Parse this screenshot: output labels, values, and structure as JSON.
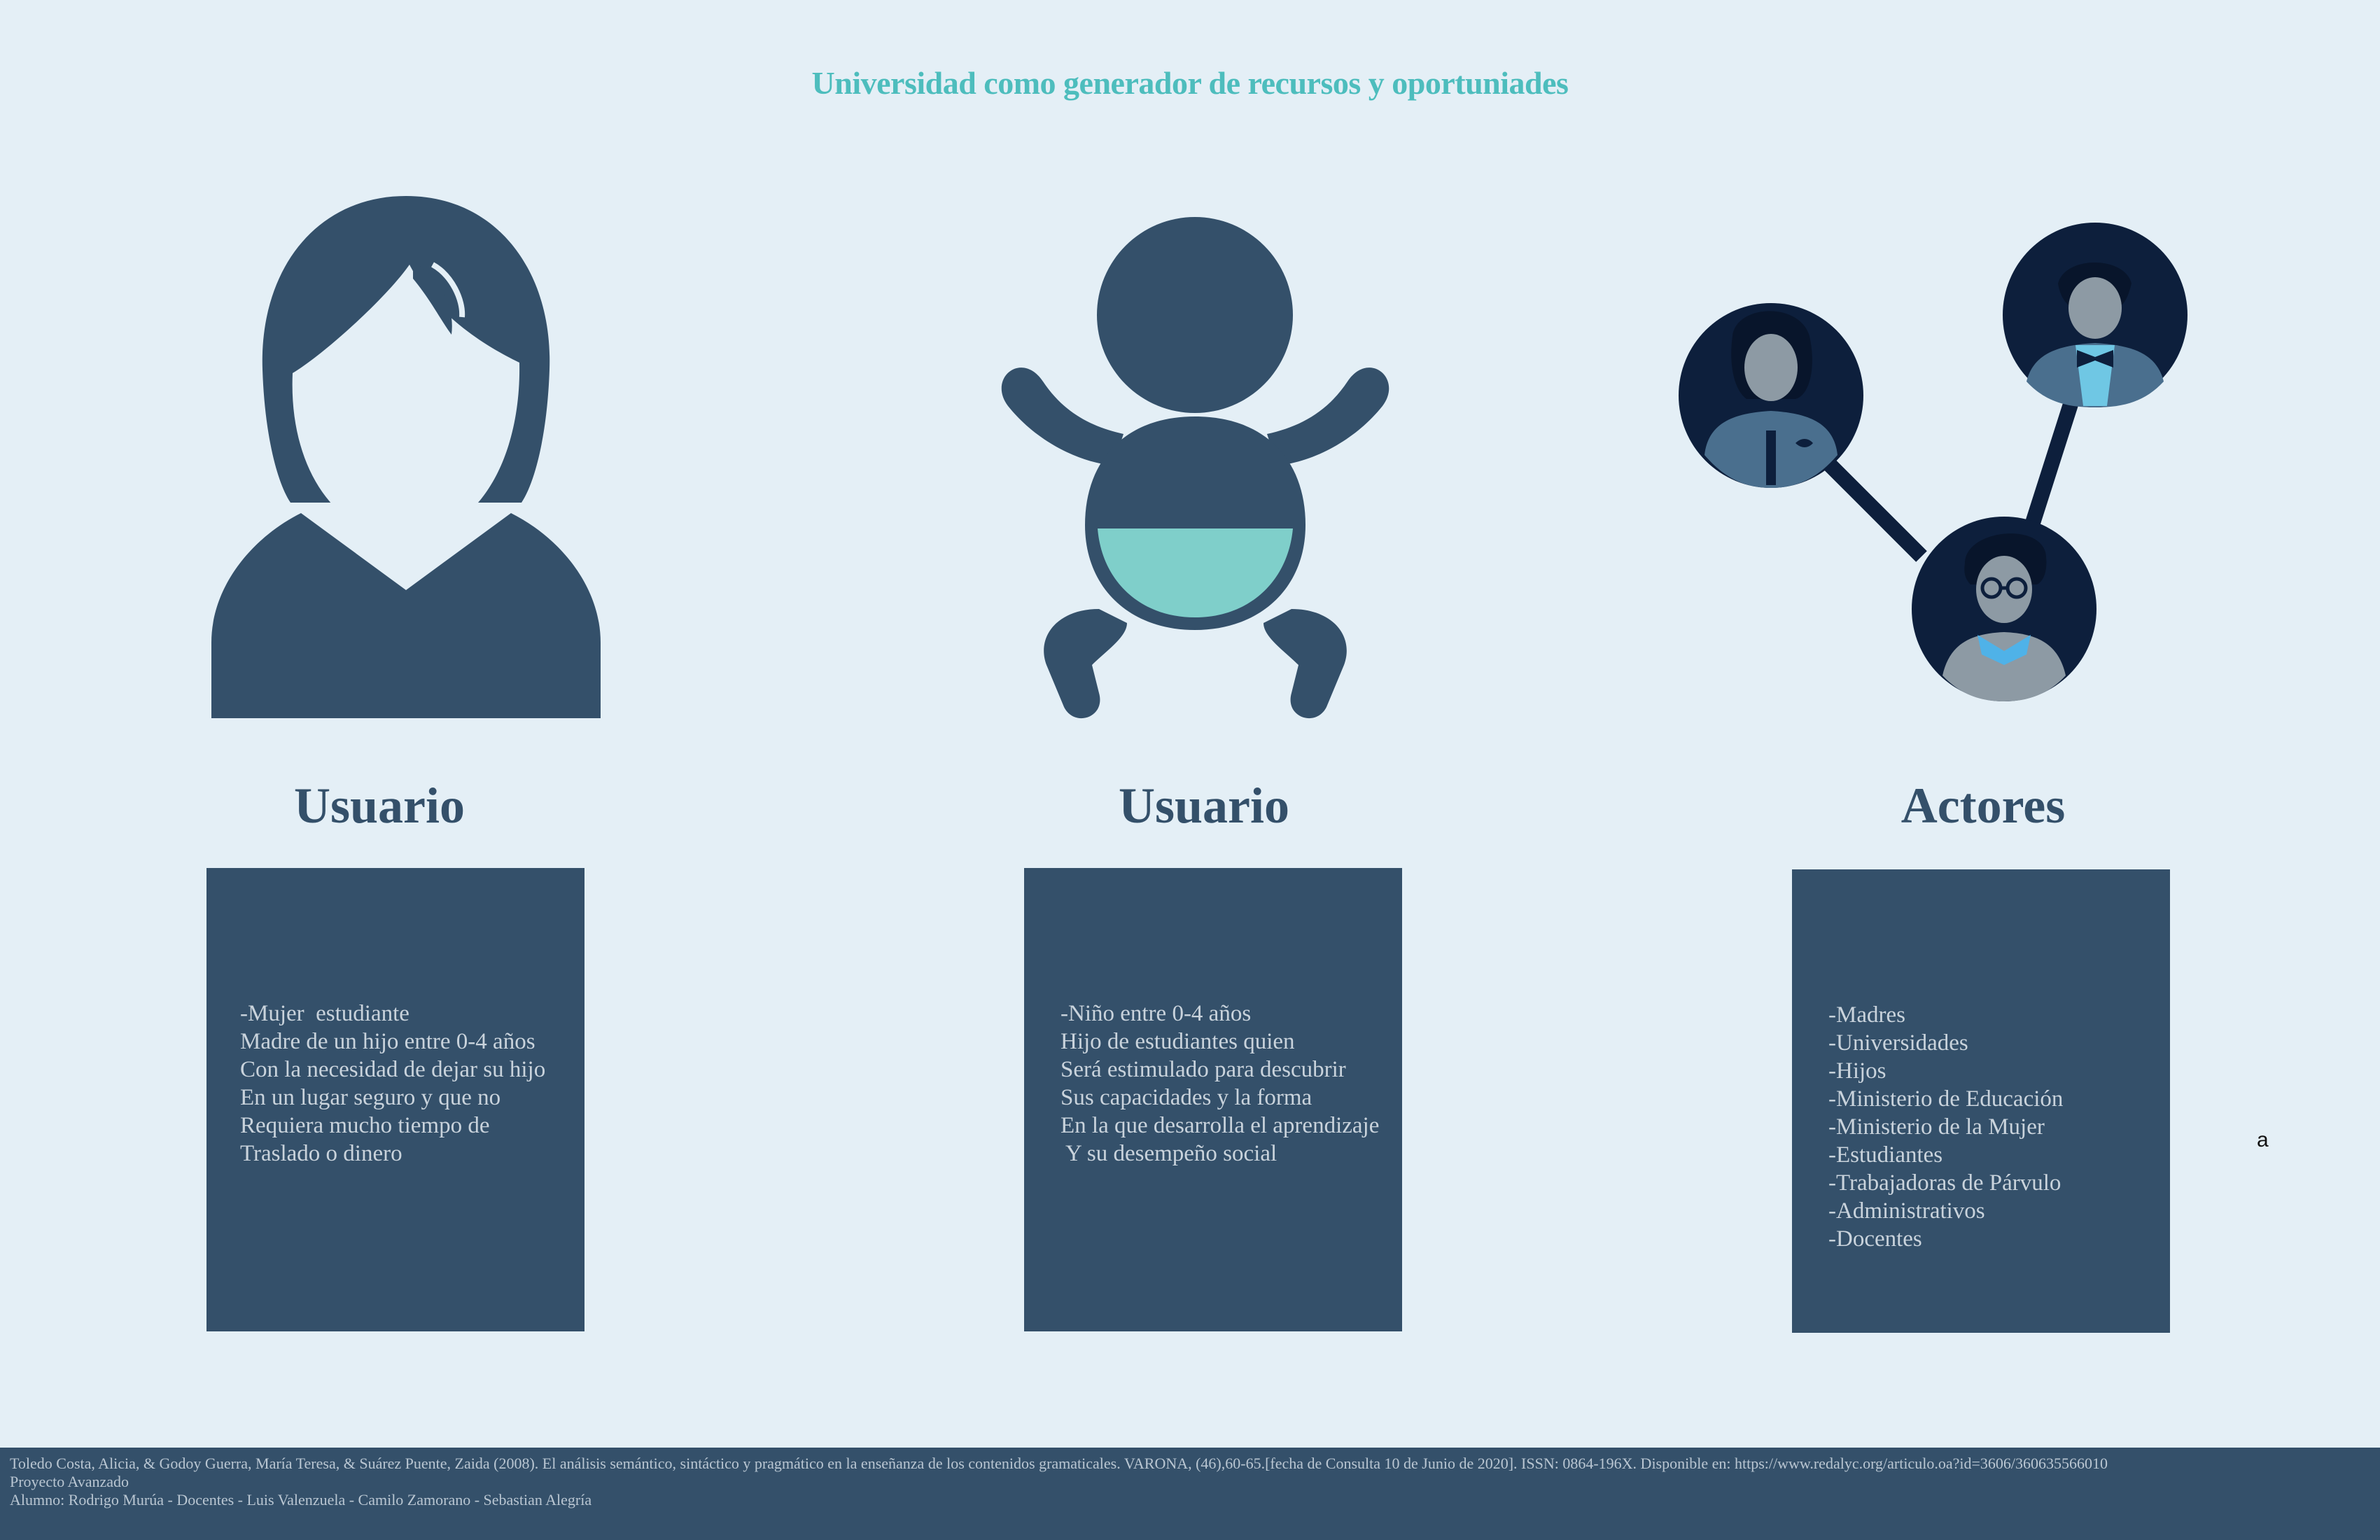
{
  "title": "Universidad  como generador de recursos y oportuniades",
  "colors": {
    "background": "#e4eff6",
    "dark_blue": "#34506a",
    "teal": "#4dbdbd",
    "diaper": "#7fcfca",
    "navy": "#0d1f3c"
  },
  "columns": [
    {
      "icon": "woman-silhouette-icon",
      "heading": "Usuario",
      "lines": [
        "-Mujer  estudiante",
        "Madre de un hijo entre 0-4 años",
        "Con la necesidad de dejar su hijo",
        "En un lugar seguro y que no",
        "Requiera mucho tiempo de",
        "Traslado o dinero"
      ]
    },
    {
      "icon": "baby-silhouette-icon",
      "heading": "Usuario",
      "lines": [
        "-Niño entre 0-4 años",
        "Hijo de estudiantes quien",
        "Será estimulado para descubrir",
        "Sus capacidades y la forma",
        "En la que desarrolla el aprendizaje",
        " Y su desempeño social"
      ]
    },
    {
      "icon": "people-network-icon",
      "heading": "Actores",
      "lines": [
        "-Madres",
        "-Universidades",
        "-Hijos",
        "-Ministerio de Educación",
        "-Ministerio de la Mujer",
        "-Estudiantes",
        "-Trabajadoras de Párvulo",
        "-Administrativos",
        "-Docentes"
      ]
    }
  ],
  "stray_text": "a",
  "footer": {
    "citation": "Toledo Costa, Alicia, & Godoy Guerra, María Teresa, & Suárez Puente, Zaida (2008). El análisis semántico, sintáctico y pragmático en la enseñanza de los contenidos gramaticales. VARONA, (46),60-65.[fecha de Consulta 10 de Junio de 2020]. ISSN: 0864-196X. Disponible en: https://www.redalyc.org/articulo.oa?id=3606/360635566010",
    "project": "Proyecto Avanzado",
    "credits": "Alumno: Rodrigo Murúa - Docentes - Luis Valenzuela - Camilo Zamorano - Sebastian Alegría"
  }
}
